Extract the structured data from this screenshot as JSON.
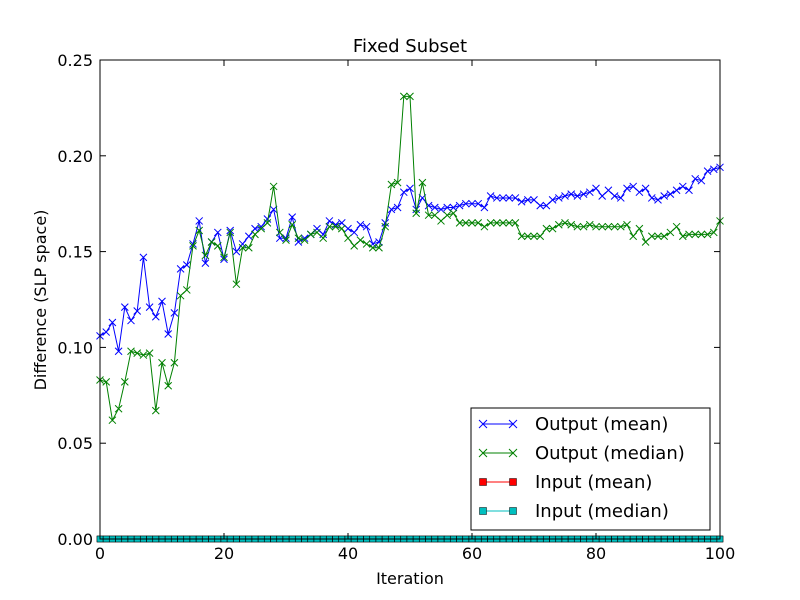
{
  "chart_data": {
    "type": "line",
    "title": "Fixed Subset",
    "xlabel": "Iteration",
    "ylabel": "Difference (SLP space)",
    "xlim": [
      0,
      100
    ],
    "ylim": [
      0,
      0.25
    ],
    "xticks": [
      0,
      20,
      40,
      60,
      80,
      100
    ],
    "xtick_labels": [
      "0",
      "20",
      "40",
      "60",
      "80",
      "100"
    ],
    "yticks": [
      0,
      0.05,
      0.1,
      0.15,
      0.2,
      0.25
    ],
    "ytick_labels": [
      "0.00",
      "0.05",
      "0.10",
      "0.15",
      "0.20",
      "0.25"
    ],
    "grid": false,
    "legend_position": "lower-right",
    "x": [
      0,
      1,
      2,
      3,
      4,
      5,
      6,
      7,
      8,
      9,
      10,
      11,
      12,
      13,
      14,
      15,
      16,
      17,
      18,
      19,
      20,
      21,
      22,
      23,
      24,
      25,
      26,
      27,
      28,
      29,
      30,
      31,
      32,
      33,
      34,
      35,
      36,
      37,
      38,
      39,
      40,
      41,
      42,
      43,
      44,
      45,
      46,
      47,
      48,
      49,
      50,
      51,
      52,
      53,
      54,
      55,
      56,
      57,
      58,
      59,
      60,
      61,
      62,
      63,
      64,
      65,
      66,
      67,
      68,
      69,
      70,
      71,
      72,
      73,
      74,
      75,
      76,
      77,
      78,
      79,
      80,
      81,
      82,
      83,
      84,
      85,
      86,
      87,
      88,
      89,
      90,
      91,
      92,
      93,
      94,
      95,
      96,
      97,
      98,
      99,
      100
    ],
    "series": [
      {
        "name": "Output (mean)",
        "color": "#0000ff",
        "marker": "x",
        "values": [
          0.106,
          0.108,
          0.113,
          0.098,
          0.121,
          0.114,
          0.119,
          0.147,
          0.121,
          0.116,
          0.124,
          0.107,
          0.118,
          0.141,
          0.143,
          0.154,
          0.166,
          0.144,
          0.155,
          0.16,
          0.146,
          0.161,
          0.15,
          0.154,
          0.158,
          0.162,
          0.163,
          0.167,
          0.172,
          0.157,
          0.157,
          0.168,
          0.155,
          0.157,
          0.159,
          0.162,
          0.159,
          0.166,
          0.164,
          0.165,
          0.162,
          0.16,
          0.164,
          0.163,
          0.154,
          0.155,
          0.165,
          0.172,
          0.173,
          0.181,
          0.183,
          0.172,
          0.178,
          0.174,
          0.173,
          0.172,
          0.173,
          0.173,
          0.174,
          0.175,
          0.175,
          0.175,
          0.173,
          0.179,
          0.178,
          0.178,
          0.178,
          0.178,
          0.176,
          0.177,
          0.177,
          0.174,
          0.174,
          0.177,
          0.178,
          0.179,
          0.18,
          0.179,
          0.18,
          0.181,
          0.183,
          0.179,
          0.182,
          0.179,
          0.178,
          0.183,
          0.184,
          0.181,
          0.183,
          0.178,
          0.177,
          0.179,
          0.18,
          0.182,
          0.184,
          0.182,
          0.188,
          0.187,
          0.192,
          0.193,
          0.194
        ]
      },
      {
        "name": "Output (median)",
        "color": "#008000",
        "marker": "x",
        "values": [
          0.083,
          0.082,
          0.062,
          0.068,
          0.082,
          0.098,
          0.097,
          0.096,
          0.097,
          0.067,
          0.092,
          0.08,
          0.092,
          0.127,
          0.13,
          0.153,
          0.161,
          0.148,
          0.155,
          0.153,
          0.147,
          0.16,
          0.133,
          0.152,
          0.152,
          0.159,
          0.162,
          0.165,
          0.184,
          0.16,
          0.156,
          0.164,
          0.157,
          0.156,
          0.159,
          0.16,
          0.157,
          0.163,
          0.163,
          0.162,
          0.157,
          0.153,
          0.156,
          0.154,
          0.152,
          0.152,
          0.163,
          0.185,
          0.186,
          0.231,
          0.231,
          0.17,
          0.186,
          0.169,
          0.169,
          0.166,
          0.169,
          0.17,
          0.165,
          0.165,
          0.165,
          0.165,
          0.163,
          0.165,
          0.165,
          0.165,
          0.165,
          0.165,
          0.158,
          0.158,
          0.158,
          0.158,
          0.162,
          0.162,
          0.164,
          0.165,
          0.164,
          0.163,
          0.163,
          0.164,
          0.163,
          0.163,
          0.163,
          0.163,
          0.163,
          0.164,
          0.158,
          0.162,
          0.155,
          0.158,
          0.158,
          0.158,
          0.16,
          0.163,
          0.158,
          0.159,
          0.159,
          0.159,
          0.159,
          0.16,
          0.166
        ]
      },
      {
        "name": "Input (mean)",
        "color": "#ff0000",
        "marker": "s",
        "values": [
          0,
          0,
          0,
          0,
          0,
          0,
          0,
          0,
          0,
          0,
          0,
          0,
          0,
          0,
          0,
          0,
          0,
          0,
          0,
          0,
          0,
          0,
          0,
          0,
          0,
          0,
          0,
          0,
          0,
          0,
          0,
          0,
          0,
          0,
          0,
          0,
          0,
          0,
          0,
          0,
          0,
          0,
          0,
          0,
          0,
          0,
          0,
          0,
          0,
          0,
          0,
          0,
          0,
          0,
          0,
          0,
          0,
          0,
          0,
          0,
          0,
          0,
          0,
          0,
          0,
          0,
          0,
          0,
          0,
          0,
          0,
          0,
          0,
          0,
          0,
          0,
          0,
          0,
          0,
          0,
          0,
          0,
          0,
          0,
          0,
          0,
          0,
          0,
          0,
          0,
          0,
          0,
          0,
          0,
          0,
          0,
          0,
          0,
          0,
          0,
          0
        ]
      },
      {
        "name": "Input (median)",
        "color": "#00bfbf",
        "marker": "s",
        "values": [
          0,
          0,
          0,
          0,
          0,
          0,
          0,
          0,
          0,
          0,
          0,
          0,
          0,
          0,
          0,
          0,
          0,
          0,
          0,
          0,
          0,
          0,
          0,
          0,
          0,
          0,
          0,
          0,
          0,
          0,
          0,
          0,
          0,
          0,
          0,
          0,
          0,
          0,
          0,
          0,
          0,
          0,
          0,
          0,
          0,
          0,
          0,
          0,
          0,
          0,
          0,
          0,
          0,
          0,
          0,
          0,
          0,
          0,
          0,
          0,
          0,
          0,
          0,
          0,
          0,
          0,
          0,
          0,
          0,
          0,
          0,
          0,
          0,
          0,
          0,
          0,
          0,
          0,
          0,
          0,
          0,
          0,
          0,
          0,
          0,
          0,
          0,
          0,
          0,
          0,
          0,
          0,
          0,
          0,
          0,
          0,
          0,
          0,
          0,
          0,
          0
        ]
      }
    ]
  }
}
